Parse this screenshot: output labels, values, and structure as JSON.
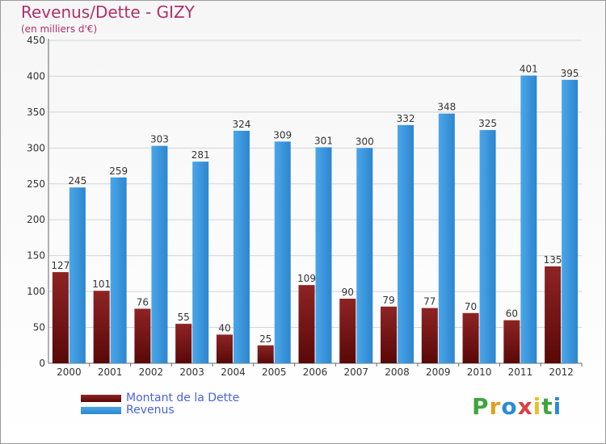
{
  "title": "Revenus/Dette - GIZY",
  "subtitle": "(en milliers d'€)",
  "brand": {
    "letters": [
      "P",
      "r",
      "o",
      "x",
      "i",
      "t",
      "i"
    ],
    "colors": [
      "#3fa43f",
      "#e0a020",
      "#2a8ad8",
      "#d94040",
      "#e6c22a",
      "#3fa43f",
      "#2a8ad8"
    ]
  },
  "chart_data": {
    "type": "bar",
    "categories": [
      "2000",
      "2001",
      "2002",
      "2003",
      "2004",
      "2005",
      "2006",
      "2007",
      "2008",
      "2009",
      "2010",
      "2011",
      "2012"
    ],
    "series": [
      {
        "name": "Montant de la Dette",
        "color": "#7a1a1a",
        "values": [
          127,
          101,
          76,
          55,
          40,
          25,
          109,
          90,
          79,
          77,
          70,
          60,
          135
        ]
      },
      {
        "name": "Revenus",
        "color": "#3d97dd",
        "values": [
          245,
          259,
          303,
          281,
          324,
          309,
          301,
          300,
          332,
          348,
          325,
          401,
          395
        ]
      }
    ],
    "ylim": [
      0,
      450
    ],
    "yticks": [
      0,
      50,
      100,
      150,
      200,
      250,
      300,
      350,
      400,
      450
    ],
    "grid": true,
    "legend": "bottom-left"
  }
}
